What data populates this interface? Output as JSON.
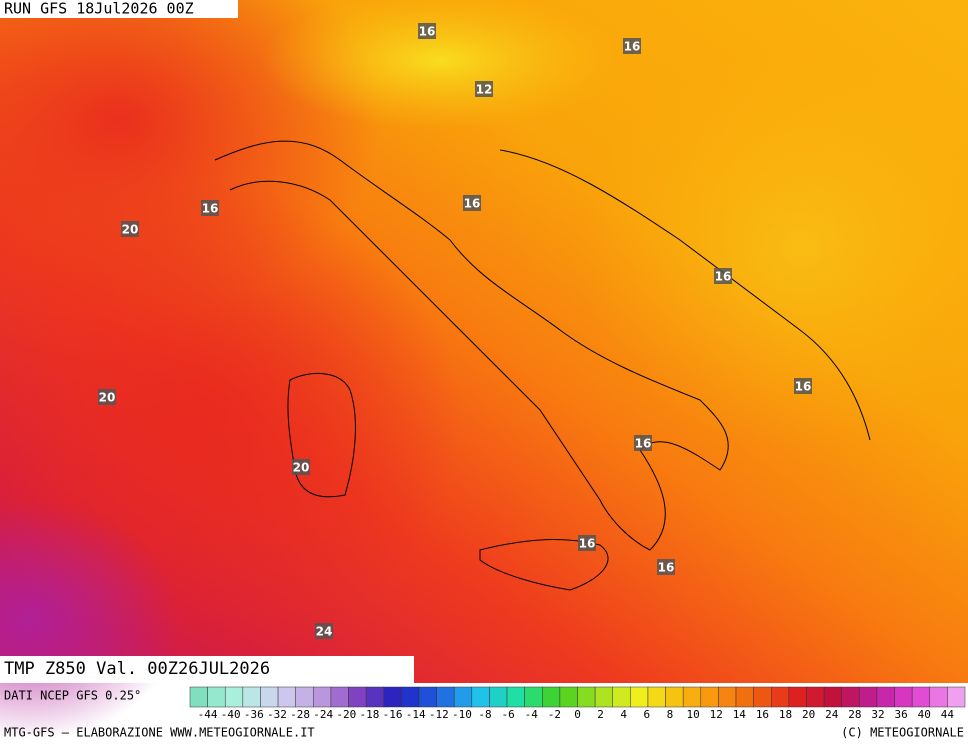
{
  "header": {
    "run": "RUN GFS 18Jul2026 00Z",
    "field": "TMP Z850 Val. 00Z26JUL2026"
  },
  "footer": {
    "source": "DATI NCEP GFS 0.25°",
    "credit": "MTG-GFS — ELABORAZIONE WWW.METEOGIORNALE.IT",
    "copyright": "(C) METEOGIORNALE"
  },
  "map": {
    "contour_labels": [
      "16",
      "16",
      "12",
      "16",
      "20",
      "16",
      "16",
      "20",
      "16",
      "16",
      "20",
      "16",
      "16",
      "24"
    ]
  },
  "colorbar": {
    "labels": [
      "-44",
      "-40",
      "-36",
      "-32",
      "-28",
      "-24",
      "-20",
      "-18",
      "-16",
      "-14",
      "-12",
      "-10",
      "-8",
      "-6",
      "-4",
      "-2",
      "0",
      "2",
      "4",
      "6",
      "8",
      "10",
      "12",
      "14",
      "16",
      "18",
      "20",
      "24",
      "28",
      "32",
      "36",
      "40",
      "44"
    ]
  }
}
